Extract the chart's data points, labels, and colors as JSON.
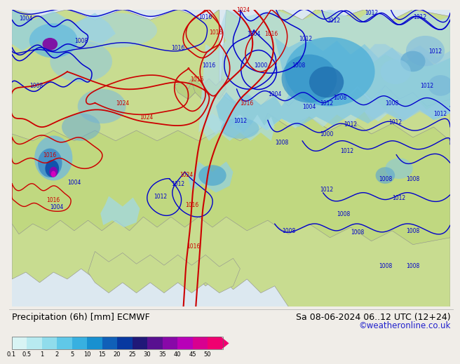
{
  "title_left": "Precipitation (6h) [mm] ECMWF",
  "title_right": "Sa 08-06-2024 06..12 UTC (12+24)",
  "credit": "©weatheronline.co.uk",
  "colorbar_levels": [
    0.1,
    0.5,
    1,
    2,
    5,
    10,
    15,
    20,
    25,
    30,
    35,
    40,
    45,
    50
  ],
  "colorbar_colors": [
    "#d8f4f4",
    "#b8eaf0",
    "#90dcec",
    "#60c8e8",
    "#38b0e0",
    "#1890d0",
    "#1060b8",
    "#0838a0",
    "#201878",
    "#581090",
    "#8808a8",
    "#b800b8",
    "#d80090",
    "#f00070"
  ],
  "bg_color": "#f0ede8",
  "map_bg": "#e8e4e0",
  "ocean_color": "#d0e8f0",
  "land_green": "#c8dc90",
  "land_green2": "#b8d080",
  "precip_light": "#b8e8f0",
  "precip_mid": "#70c8e8",
  "precip_dark": "#2898d0",
  "precip_deep": "#1060b0",
  "precip_purple": "#8000a0",
  "precip_magenta": "#d000c0",
  "text_color": "#000000",
  "title_fontsize": 9.0,
  "credit_color": "#2020cc",
  "credit_fontsize": 8.5,
  "blue_contour": "#0000cc",
  "red_contour": "#cc0000",
  "gray_coast": "#909090"
}
